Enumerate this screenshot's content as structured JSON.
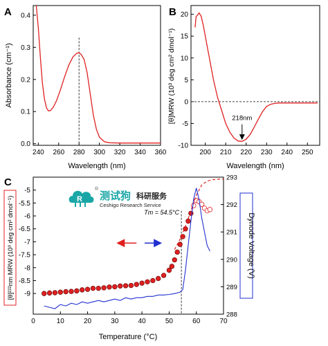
{
  "colors": {
    "red": "#e02020",
    "blue": "#1f2fd0",
    "brand_teal": "#1aa6a6",
    "axis": "#000000"
  },
  "watermark": {
    "logo_icon": "cloud-r-logo-icon",
    "reg_mark": "®",
    "cn_brand": "测试狗",
    "cn_service": "科研服务",
    "en_brand": "Ceshigo Research Service"
  },
  "chart_data": [
    {
      "panel": "A",
      "type": "line",
      "title": "",
      "xlabel": "Wavelength  (nm)",
      "ylabel": "Absorbance  (cm⁻¹)",
      "xlim": [
        235,
        360
      ],
      "ylim": [
        -0.005,
        0.43
      ],
      "xticks": [
        240,
        260,
        280,
        300,
        320,
        340,
        360
      ],
      "yticks": [
        0.0,
        0.1,
        0.2,
        0.3,
        0.4
      ],
      "ytick_labels": [
        "0.0",
        "0.1",
        "0.2",
        "0.3",
        "0.4"
      ],
      "grid": false,
      "vline_x": 280,
      "series": [
        {
          "color": "red",
          "x": [
            238,
            240,
            242,
            244,
            246,
            248,
            250,
            252,
            255,
            258,
            262,
            266,
            270,
            274,
            278,
            280,
            282,
            285,
            288,
            291,
            294,
            297,
            300,
            305,
            310,
            320,
            330,
            340,
            350,
            360
          ],
          "y": [
            0.43,
            0.36,
            0.27,
            0.19,
            0.14,
            0.112,
            0.102,
            0.103,
            0.115,
            0.135,
            0.17,
            0.21,
            0.245,
            0.27,
            0.282,
            0.283,
            0.278,
            0.262,
            0.22,
            0.155,
            0.09,
            0.045,
            0.02,
            0.006,
            0.003,
            0.002,
            0.002,
            0.002,
            0.002,
            0.002
          ]
        }
      ]
    },
    {
      "panel": "B",
      "type": "line",
      "title": "",
      "xlabel": "Wavelength  (nm)",
      "ylabel": "[θ]MRW (10³ deg cm² dmol⁻¹)",
      "xlim": [
        193,
        256
      ],
      "ylim": [
        -10,
        22
      ],
      "xticks": [
        200,
        210,
        220,
        230,
        240,
        250
      ],
      "yticks": [
        -10,
        -5,
        0,
        5,
        10,
        15,
        20
      ],
      "grid": false,
      "hline_y": 0,
      "annotation": "218nm",
      "annotation_x": 218,
      "series": [
        {
          "color": "red",
          "x": [
            195,
            195.5,
            196,
            197,
            198,
            199,
            200,
            201,
            202,
            203,
            204,
            205,
            206,
            207,
            208,
            209,
            210,
            212,
            214,
            216,
            218,
            220,
            222,
            224,
            226,
            228,
            230,
            232,
            234,
            236,
            240,
            245,
            250,
            255
          ],
          "y": [
            17,
            19.5,
            19.7,
            20.3,
            19.5,
            17.5,
            15,
            12.5,
            10,
            7.5,
            5,
            3,
            1,
            -0.5,
            -2,
            -3.5,
            -5,
            -7,
            -8.3,
            -9,
            -9.1,
            -8.6,
            -7.5,
            -5.8,
            -4,
            -2.3,
            -1.1,
            -0.6,
            -0.4,
            -0.3,
            -0.3,
            -0.3,
            -0.3,
            -0.3
          ]
        }
      ]
    },
    {
      "panel": "C",
      "type": "line",
      "title": "",
      "xlabel": "Temperature  (°C)",
      "ylabel_left": "[θ]²²²nm MRW (10³ deg cm² dmol⁻¹)",
      "ylabel_right": "Dynode Voltage  (V)",
      "xlim": [
        0,
        70
      ],
      "ylim_left": [
        -9.8,
        -4.5
      ],
      "ylim_right": [
        288,
        293
      ],
      "xticks": [
        0,
        10,
        20,
        30,
        40,
        50,
        60,
        70
      ],
      "yticks_left": [
        -9,
        -8.5,
        -8,
        -7.5,
        -7,
        -6.5,
        -6,
        -5.5,
        -5
      ],
      "ytick_labels_left": [
        "-9",
        "-8.5",
        "-8",
        "-7.5",
        "-7",
        "-6.5",
        "-6",
        "-5.5",
        "-5"
      ],
      "yticks_right": [
        288,
        289,
        290,
        291,
        292,
        293
      ],
      "grid": false,
      "annotation": "Tm = 54.5°C",
      "vline_x": 54.5,
      "series": [
        {
          "color": "red",
          "style": "filled-markers",
          "axis": "left",
          "x": [
            4,
            6,
            8,
            10,
            12,
            14,
            16,
            18,
            20,
            22,
            24,
            26,
            28,
            30,
            32,
            34,
            36,
            38,
            40,
            42,
            44,
            46,
            48,
            50,
            51,
            52,
            53,
            54,
            55,
            56,
            57,
            58
          ],
          "y": [
            -9.0,
            -8.98,
            -8.97,
            -8.95,
            -8.93,
            -8.92,
            -8.9,
            -8.86,
            -8.84,
            -8.8,
            -8.8,
            -8.78,
            -8.75,
            -8.74,
            -8.71,
            -8.7,
            -8.69,
            -8.65,
            -8.6,
            -8.55,
            -8.5,
            -8.42,
            -8.3,
            -8.1,
            -7.95,
            -7.7,
            -7.4,
            -7.1,
            -6.8,
            -6.5,
            -6.2,
            -5.9
          ]
        },
        {
          "color": "red",
          "style": "open-markers",
          "axis": "left",
          "x": [
            59,
            60,
            61,
            62,
            63,
            64,
            65
          ],
          "y": [
            -5.6,
            -5.4,
            -5.45,
            -5.55,
            -5.7,
            -5.8,
            -5.75
          ]
        },
        {
          "color": "red",
          "style": "dashed-fit",
          "axis": "left",
          "x": [
            52,
            54,
            56,
            58,
            60,
            62,
            64,
            66,
            68,
            70
          ],
          "y": [
            -7.3,
            -6.9,
            -6.4,
            -5.8,
            -5.2,
            -4.8,
            -4.65,
            -4.6,
            -4.58,
            -4.57
          ]
        },
        {
          "color": "blue",
          "style": "line",
          "axis": "right",
          "x": [
            4,
            6,
            8,
            10,
            12,
            14,
            16,
            18,
            20,
            22,
            24,
            26,
            28,
            30,
            32,
            34,
            36,
            38,
            40,
            42,
            44,
            46,
            48,
            50,
            52,
            54,
            55,
            56,
            57,
            58,
            59,
            60,
            61,
            62,
            63,
            64,
            65
          ],
          "y": [
            288.3,
            288.25,
            288.2,
            288.35,
            288.3,
            288.4,
            288.35,
            288.45,
            288.4,
            288.45,
            288.5,
            288.45,
            288.5,
            288.55,
            288.5,
            288.6,
            288.55,
            288.6,
            288.6,
            288.65,
            288.65,
            288.7,
            288.7,
            288.72,
            288.75,
            288.8,
            288.9,
            289.6,
            290.5,
            291.4,
            292.2,
            292.6,
            292.2,
            291.5,
            291.0,
            290.5,
            290.3
          ]
        }
      ]
    }
  ]
}
